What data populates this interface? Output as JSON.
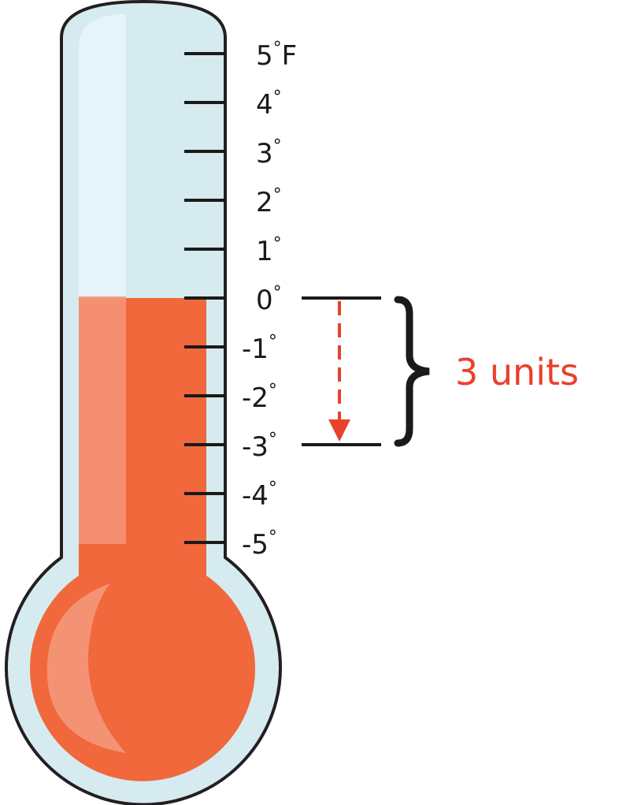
{
  "thermometer": {
    "unit": "F",
    "scale_min": -5,
    "scale_max": 5,
    "fill_level": 0,
    "tick_labels": [
      "5",
      "4",
      "3",
      "2",
      "1",
      "0",
      "-1",
      "-2",
      "-3",
      "-4",
      "-5"
    ],
    "degree_symbol": "°"
  },
  "annotation": {
    "from_value": 0,
    "to_value": -3,
    "label": "3 units"
  },
  "colors": {
    "tube_outline": "#231f20",
    "tube_glass": "#d5ebf0",
    "tube_highlight": "#e6f3f7",
    "liquid": "#f0683c",
    "liquid_highlight": "#f4977a",
    "arrow": "#e8412c",
    "annotation_text": "#e8412c"
  }
}
